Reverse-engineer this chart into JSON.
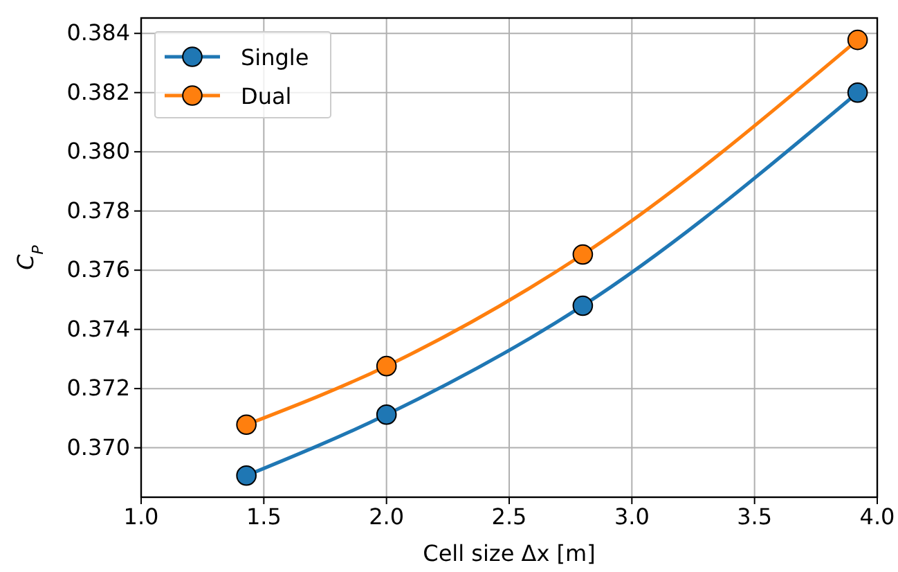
{
  "chart_data": {
    "type": "line",
    "xlabel": "Cell size Δx [m]",
    "ylabel": "C$_{P}$",
    "x": [
      1.429,
      2.0,
      2.8,
      3.92
    ],
    "series": [
      {
        "name": "Single",
        "color": "#1f77b4",
        "values": [
          0.36906,
          0.37112,
          0.3748,
          0.382
        ]
      },
      {
        "name": "Dual",
        "color": "#ff7f0e",
        "values": [
          0.37078,
          0.37276,
          0.37653,
          0.38378
        ]
      }
    ],
    "xlim": [
      1.0,
      4.0
    ],
    "xticks": [
      {
        "value": 1.0,
        "label": "1.0"
      },
      {
        "value": 1.5,
        "label": "1.5"
      },
      {
        "value": 2.0,
        "label": "2.0"
      },
      {
        "value": 2.5,
        "label": "2.5"
      },
      {
        "value": 3.0,
        "label": "3.0"
      },
      {
        "value": 3.5,
        "label": "3.5"
      },
      {
        "value": 4.0,
        "label": "4.0"
      }
    ],
    "ylim": [
      0.36833,
      0.38452
    ],
    "yticks": [
      {
        "value": 0.37,
        "label": "0.370"
      },
      {
        "value": 0.372,
        "label": "0.372"
      },
      {
        "value": 0.374,
        "label": "0.374"
      },
      {
        "value": 0.376,
        "label": "0.376"
      },
      {
        "value": 0.378,
        "label": "0.378"
      },
      {
        "value": 0.38,
        "label": "0.380"
      },
      {
        "value": 0.382,
        "label": "0.382"
      },
      {
        "value": 0.384,
        "label": "0.384"
      }
    ],
    "grid": true,
    "legend": "top left",
    "marker": "circle",
    "line_style": "solid"
  }
}
